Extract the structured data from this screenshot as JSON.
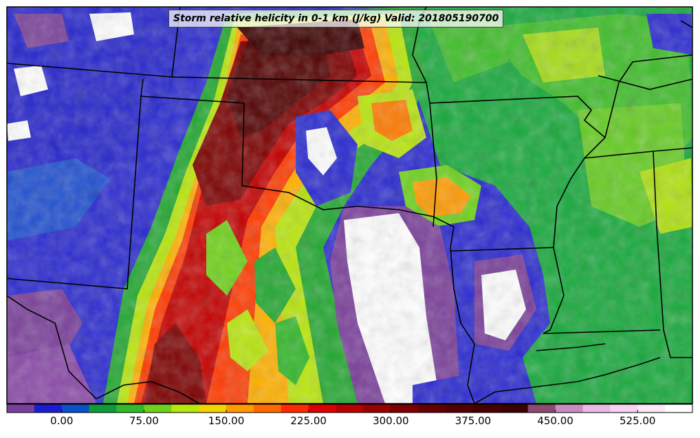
{
  "title": "Storm relative helicity in 0-1 km (J/kg) Valid: 201805190700",
  "colorbar": {
    "tick_labels": [
      "0.00",
      "75.00",
      "150.00",
      "225.00",
      "300.00",
      "375.00",
      "450.00",
      "525.00"
    ],
    "tick_values": [
      0,
      75,
      150,
      225,
      300,
      375,
      450,
      525
    ],
    "range": [
      -50,
      575
    ],
    "bin_size": 25,
    "colors": [
      "#7a3f9a",
      "#1b1bd6",
      "#0a50c8",
      "#109b3a",
      "#33b82a",
      "#6fd21a",
      "#b9e60c",
      "#f1d400",
      "#ff9a00",
      "#ff6a00",
      "#ff2a00",
      "#dd0000",
      "#b80000",
      "#990000",
      "#7d0000",
      "#640000",
      "#520000",
      "#460000",
      "#3c0000",
      "#8c4a70",
      "#c98cbf",
      "#eab9e4",
      "#f6d4f1",
      "#fbe8f9",
      "#ffffff"
    ]
  },
  "colors": {
    "frame": "#000000",
    "state_lines": "#000000",
    "missing": "#ffffff"
  }
}
